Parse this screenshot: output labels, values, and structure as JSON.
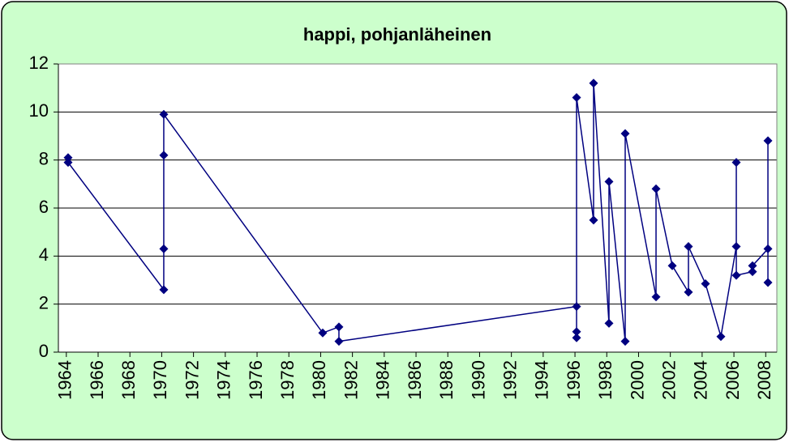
{
  "chart_data": {
    "type": "line",
    "title": "happi, pohjanläheinen",
    "x": [
      1964.11,
      1964.11,
      1970.13,
      1970.13,
      1970.13,
      1970.13,
      1980.13,
      1981.15,
      1981.15,
      1996.1,
      1996.1,
      1996.1,
      1996.1,
      1997.17,
      1997.17,
      1998.14,
      1998.14,
      1999.16,
      1999.16,
      2001.1,
      2001.1,
      2002.12,
      2003.14,
      2003.14,
      2004.21,
      2005.18,
      2006.15,
      2006.15,
      2006.15,
      2007.17,
      2007.17,
      2008.14,
      2008.14,
      2008.14
    ],
    "series": [
      {
        "name": "happi",
        "color": "#000080",
        "values": [
          8.1,
          7.9,
          2.6,
          4.3,
          8.2,
          9.9,
          0.8,
          1.05,
          0.45,
          1.9,
          0.85,
          0.6,
          10.6,
          5.5,
          11.2,
          1.2,
          7.1,
          0.45,
          9.1,
          2.3,
          6.8,
          3.6,
          2.5,
          4.4,
          2.85,
          0.65,
          4.4,
          7.9,
          3.2,
          3.35,
          3.6,
          4.3,
          8.8,
          2.9
        ]
      }
    ],
    "xlim": [
      1963.5,
      2008.7
    ],
    "xticks": [
      1964,
      1966,
      1968,
      1970,
      1972,
      1974,
      1976,
      1978,
      1980,
      1982,
      1984,
      1986,
      1988,
      1990,
      1992,
      1994,
      1996,
      1998,
      2000,
      2002,
      2004,
      2006,
      2008
    ],
    "ylim": [
      0,
      12
    ],
    "yticks": [
      0,
      2,
      4,
      6,
      8,
      10,
      12
    ],
    "grid": true
  }
}
